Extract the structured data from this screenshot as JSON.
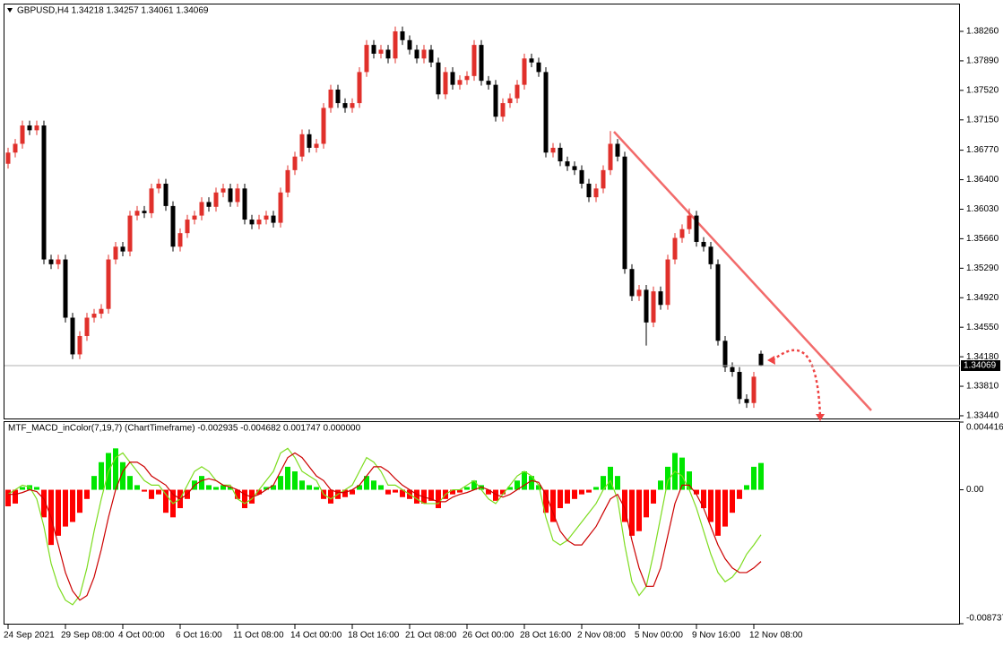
{
  "chart_data": [
    {
      "type": "candlestick",
      "title": "GBPUSD,H4 1.34218 1.34257 1.34061 1.34069",
      "up_color": "#e0302b",
      "down_color": "#000000",
      "xlim": [
        -0.5,
        132.5
      ],
      "xticks": [
        {
          "value": 0,
          "label": "24 Sep 2021"
        },
        {
          "value": 8,
          "label": "29 Sep 08:00"
        },
        {
          "value": 16,
          "label": "4 Oct 00:00"
        },
        {
          "value": 24,
          "label": "6 Oct 16:00"
        },
        {
          "value": 32,
          "label": "11 Oct 08:00"
        },
        {
          "value": 40,
          "label": "14 Oct 00:00"
        },
        {
          "value": 48,
          "label": "18 Oct 16:00"
        },
        {
          "value": 56,
          "label": "21 Oct 08:00"
        },
        {
          "value": 64,
          "label": "26 Oct 00:00"
        },
        {
          "value": 72,
          "label": "28 Oct 16:00"
        },
        {
          "value": 80,
          "label": "2 Nov 08:00"
        },
        {
          "value": 88,
          "label": "5 Nov 00:00"
        },
        {
          "value": 96,
          "label": "9 Nov 16:00"
        },
        {
          "value": 104,
          "label": "12 Nov 08:00"
        }
      ],
      "ylim": [
        1.33406,
        1.38597
      ],
      "yticks": [
        {
          "value": 1.3826,
          "label": "1.38260"
        },
        {
          "value": 1.3789,
          "label": "1.37890"
        },
        {
          "value": 1.3752,
          "label": "1.37520"
        },
        {
          "value": 1.3715,
          "label": "1.37150"
        },
        {
          "value": 1.3677,
          "label": "1.36770"
        },
        {
          "value": 1.364,
          "label": "1.36400"
        },
        {
          "value": 1.3603,
          "label": "1.36030"
        },
        {
          "value": 1.3566,
          "label": "1.35660"
        },
        {
          "value": 1.3529,
          "label": "1.35290"
        },
        {
          "value": 1.3492,
          "label": "1.34920"
        },
        {
          "value": 1.3455,
          "label": "1.34550"
        },
        {
          "value": 1.3418,
          "label": "1.34180"
        },
        {
          "value": 1.3381,
          "label": "1.33810"
        },
        {
          "value": 1.3344,
          "label": "1.33440"
        }
      ],
      "open": [
        1.366,
        1.3674,
        1.3685,
        1.3708,
        1.3702,
        1.3708,
        1.354,
        1.3534,
        1.354,
        1.3467,
        1.3421,
        1.3444,
        1.3467,
        1.3472,
        1.3478,
        1.354,
        1.3556,
        1.355,
        1.3595,
        1.3601,
        1.3598,
        1.3629,
        1.3635,
        1.3607,
        1.3556,
        1.3573,
        1.359,
        1.3595,
        1.3612,
        1.3606,
        1.3624,
        1.3629,
        1.3612,
        1.3629,
        1.359,
        1.3584,
        1.359,
        1.3595,
        1.3586,
        1.3624,
        1.3652,
        1.3669,
        1.3697,
        1.368,
        1.3685,
        1.373,
        1.3753,
        1.3736,
        1.373,
        1.3736,
        1.3775,
        1.3809,
        1.3798,
        1.3803,
        1.3792,
        1.3826,
        1.3815,
        1.3803,
        1.3792,
        1.3803,
        1.3787,
        1.3747,
        1.3775,
        1.3759,
        1.3765,
        1.377,
        1.3809,
        1.3764,
        1.3759,
        1.3719,
        1.3736,
        1.3742,
        1.3759,
        1.3792,
        1.3787,
        1.3775,
        1.3674,
        1.368,
        1.3663,
        1.3657,
        1.3652,
        1.3635,
        1.3618,
        1.3629,
        1.3652,
        1.3685,
        1.3669,
        1.3528,
        1.3494,
        1.3502,
        1.3461,
        1.35,
        1.3483,
        1.354,
        1.3567,
        1.3578,
        1.3595,
        1.3562,
        1.3556,
        1.3534,
        1.3438,
        1.3405,
        1.3399,
        1.3365,
        1.336,
        1.34218
      ],
      "high": [
        1.368,
        1.3691,
        1.3714,
        1.3714,
        1.3714,
        1.3714,
        1.3546,
        1.3546,
        1.3546,
        1.3473,
        1.345,
        1.3473,
        1.3478,
        1.3484,
        1.3546,
        1.3562,
        1.3562,
        1.3601,
        1.3607,
        1.3607,
        1.3635,
        1.3641,
        1.3641,
        1.3613,
        1.3579,
        1.3596,
        1.3601,
        1.3618,
        1.3618,
        1.363,
        1.3635,
        1.3635,
        1.3635,
        1.3635,
        1.3596,
        1.3596,
        1.3601,
        1.3601,
        1.363,
        1.3658,
        1.3675,
        1.3703,
        1.3703,
        1.3691,
        1.3736,
        1.3759,
        1.3759,
        1.3742,
        1.3742,
        1.3781,
        1.3815,
        1.3815,
        1.3809,
        1.3809,
        1.3832,
        1.3832,
        1.3821,
        1.3809,
        1.3809,
        1.3809,
        1.3793,
        1.3781,
        1.3781,
        1.3771,
        1.3776,
        1.3815,
        1.3815,
        1.377,
        1.3765,
        1.3742,
        1.3748,
        1.3765,
        1.3798,
        1.3798,
        1.3793,
        1.3781,
        1.3686,
        1.3686,
        1.3669,
        1.3663,
        1.3658,
        1.3641,
        1.3635,
        1.3658,
        1.3701,
        1.3691,
        1.3675,
        1.3534,
        1.3508,
        1.3508,
        1.3506,
        1.3506,
        1.3546,
        1.3573,
        1.3584,
        1.3604,
        1.3601,
        1.3568,
        1.3562,
        1.354,
        1.3444,
        1.3411,
        1.3405,
        1.3371,
        1.3399,
        1.34257
      ],
      "low": [
        1.3654,
        1.3668,
        1.3679,
        1.3696,
        1.3696,
        1.3534,
        1.3528,
        1.3528,
        1.3461,
        1.3415,
        1.3415,
        1.3438,
        1.3461,
        1.3466,
        1.3472,
        1.3534,
        1.3544,
        1.3544,
        1.3589,
        1.3592,
        1.3592,
        1.3623,
        1.3601,
        1.355,
        1.355,
        1.3567,
        1.3584,
        1.3589,
        1.36,
        1.36,
        1.3618,
        1.3606,
        1.3606,
        1.3584,
        1.3578,
        1.3578,
        1.3584,
        1.358,
        1.358,
        1.3618,
        1.3646,
        1.3663,
        1.3674,
        1.3674,
        1.3679,
        1.3724,
        1.373,
        1.3724,
        1.3724,
        1.373,
        1.3769,
        1.3792,
        1.3792,
        1.3786,
        1.3786,
        1.3809,
        1.3797,
        1.3786,
        1.3786,
        1.3781,
        1.3741,
        1.3741,
        1.3753,
        1.3753,
        1.3759,
        1.3764,
        1.3758,
        1.3753,
        1.3713,
        1.3713,
        1.373,
        1.3736,
        1.3753,
        1.3781,
        1.3769,
        1.3668,
        1.3668,
        1.3657,
        1.3651,
        1.3646,
        1.3629,
        1.3612,
        1.3612,
        1.3623,
        1.3646,
        1.3663,
        1.3522,
        1.3488,
        1.3488,
        1.3432,
        1.3455,
        1.3477,
        1.3477,
        1.3534,
        1.3561,
        1.3572,
        1.3556,
        1.355,
        1.3528,
        1.3432,
        1.3399,
        1.3393,
        1.3359,
        1.3354,
        1.3354,
        1.34061
      ],
      "close": [
        1.3674,
        1.3685,
        1.3708,
        1.3702,
        1.3708,
        1.354,
        1.3534,
        1.354,
        1.3467,
        1.3421,
        1.3444,
        1.3467,
        1.3472,
        1.3478,
        1.354,
        1.3556,
        1.355,
        1.3595,
        1.3601,
        1.3598,
        1.3629,
        1.3635,
        1.3607,
        1.3556,
        1.3573,
        1.359,
        1.3595,
        1.3612,
        1.3606,
        1.3624,
        1.3629,
        1.3612,
        1.3629,
        1.359,
        1.3584,
        1.359,
        1.3595,
        1.3586,
        1.3624,
        1.3652,
        1.3669,
        1.3697,
        1.368,
        1.3685,
        1.373,
        1.3753,
        1.3736,
        1.373,
        1.3736,
        1.3775,
        1.3809,
        1.3798,
        1.3803,
        1.3792,
        1.3826,
        1.3815,
        1.3803,
        1.3792,
        1.3803,
        1.3787,
        1.3747,
        1.3775,
        1.3759,
        1.3765,
        1.377,
        1.3809,
        1.3764,
        1.3759,
        1.3719,
        1.3736,
        1.3742,
        1.3759,
        1.3792,
        1.3787,
        1.3775,
        1.3674,
        1.368,
        1.3663,
        1.3657,
        1.3652,
        1.3635,
        1.3618,
        1.3629,
        1.3652,
        1.3685,
        1.3669,
        1.3528,
        1.3494,
        1.3502,
        1.3461,
        1.35,
        1.3483,
        1.354,
        1.3567,
        1.3578,
        1.3595,
        1.3562,
        1.3556,
        1.3534,
        1.3438,
        1.3405,
        1.3399,
        1.3365,
        1.336,
        1.3393,
        1.34069
      ]
    },
    {
      "type": "macd",
      "title": "MTF_MACD_inColor(7,19,7) (ChartTimeframe) -0.002935 -0.004682 0.001747 0.000000",
      "up_color": "#00e600",
      "down_color": "#ff0000",
      "ylim": [
        -0.008737,
        0.004416
      ],
      "yticks": [
        0.004416,
        {
          "value": 0,
          "label": "0.00"
        },
        -0.008737
      ],
      "values": [
        -0.00108,
        -0.0009,
        0.00018,
        0.0003,
        0.00018,
        -0.0018,
        -0.0036,
        -0.003,
        -0.0024,
        -0.0021,
        -0.0015,
        -0.0006,
        0.0009,
        0.0018,
        0.0024,
        0.0027,
        0.0018,
        0.0009,
        0.0003,
        -0.00012,
        -0.0006,
        -0.0003,
        -0.0015,
        -0.0018,
        -0.0012,
        -0.0006,
        0.0006,
        0.0009,
        0.0003,
        0.00018,
        0.0003,
        0.00018,
        -0.0006,
        -0.0012,
        -0.0009,
        -0.0003,
        0.00018,
        0.0003,
        0.0009,
        0.0015,
        0.0012,
        0.0006,
        0.0003,
        0.00018,
        -0.0006,
        -0.0009,
        -0.0006,
        -0.00048,
        -0.0003,
        0.0003,
        0.0009,
        0.0006,
        0.0003,
        -0.0003,
        -0.00018,
        -0.00048,
        -0.0006,
        -0.0009,
        -0.0009,
        -0.00072,
        -0.0012,
        -0.0006,
        -0.0003,
        -0.00018,
        0.00018,
        0.0006,
        0.0003,
        -0.0003,
        -0.00072,
        -0.0003,
        0.00018,
        0.0006,
        0.0012,
        0.0009,
        0.0003,
        -0.0015,
        -0.0021,
        -0.0012,
        -0.0009,
        -0.0006,
        -0.0003,
        -0.00018,
        0.00018,
        0.0009,
        0.0015,
        0.0009,
        -0.0021,
        -0.003,
        -0.0027,
        -0.0018,
        -0.0009,
        0.0006,
        0.0015,
        0.0024,
        0.0021,
        0.0012,
        -0.0003,
        -0.0012,
        -0.0021,
        -0.003,
        -0.0024,
        -0.0015,
        -0.0006,
        0.0003,
        0.0015,
        0.001747
      ],
      "lines": [
        {
          "color": "#7ddc1f",
          "values": [
            -0.0003,
            0,
            0.0003,
            0.00018,
            -0.0006,
            -0.0024,
            -0.0048,
            -0.0063,
            -0.0072,
            -0.0075,
            -0.0069,
            -0.0051,
            -0.0027,
            -0.0006,
            0.0012,
            0.0021,
            0.0024,
            0.0018,
            0.0012,
            0.0006,
            0.0003,
            0.0003,
            -0.0003,
            -0.0009,
            -0.0006,
            0.0003,
            0.0012,
            0.0015,
            0.0012,
            0.0006,
            0.0003,
            0.0003,
            -0.0006,
            -0.0009,
            -0.0006,
            0,
            0.0006,
            0.0012,
            0.0024,
            0.0027,
            0.0021,
            0.0012,
            0.0009,
            0.0006,
            -0.0003,
            -0.0006,
            -0.0003,
            0,
            0.0003,
            0.0012,
            0.0021,
            0.0018,
            0.0012,
            0.0003,
            0.0003,
            0,
            -0.0003,
            -0.0006,
            -0.0009,
            -0.0009,
            -0.0009,
            -0.0003,
            0,
            0,
            0.0003,
            0.0006,
            0,
            -0.0006,
            -0.0009,
            -0.0003,
            0.0003,
            0.0009,
            0.0012,
            0.0009,
            0.0003,
            -0.0018,
            -0.0033,
            -0.0036,
            -0.0033,
            -0.0027,
            -0.0021,
            -0.0015,
            -0.0009,
            0,
            0.0006,
            -0.0006,
            -0.0036,
            -0.006,
            -0.0069,
            -0.0063,
            -0.0042,
            -0.0018,
            0.0006,
            0.0012,
            0.0009,
            0,
            -0.0012,
            -0.0027,
            -0.0042,
            -0.0054,
            -0.006,
            -0.0057,
            -0.0051,
            -0.0042,
            -0.0036,
            -0.002935
          ]
        },
        {
          "color": "#cc0000",
          "values": [
            -0.0003,
            -0.0003,
            -0.00018,
            0,
            -0.00012,
            -0.0006,
            -0.0018,
            -0.0036,
            -0.0054,
            -0.0066,
            -0.0072,
            -0.0069,
            -0.0057,
            -0.0039,
            -0.0018,
            0,
            0.0012,
            0.0018,
            0.0018,
            0.0015,
            0.0009,
            0.0006,
            0.0003,
            -0.0003,
            -0.0006,
            -0.0003,
            0.0003,
            0.0006,
            0.00072,
            0.0006,
            0.0003,
            0.00018,
            0,
            -0.0003,
            -0.00048,
            -0.0003,
            0,
            0.0003,
            0.0012,
            0.0021,
            0.0024,
            0.0021,
            0.0015,
            0.0009,
            0.0006,
            0,
            -0.00018,
            -0.00018,
            0,
            0.0003,
            0.0009,
            0.0015,
            0.0015,
            0.0012,
            0.00072,
            0.0003,
            0,
            -0.0003,
            -0.00048,
            -0.0006,
            -0.00078,
            -0.00078,
            -0.00048,
            -0.0003,
            -0.00018,
            0,
            0.00018,
            0,
            -0.0003,
            -0.00048,
            -0.0003,
            0,
            0.0003,
            0.0006,
            0.00048,
            -0.0003,
            -0.0015,
            -0.0027,
            -0.0033,
            -0.0036,
            -0.0036,
            -0.003,
            -0.0024,
            -0.0015,
            -0.0006,
            -0.0003,
            -0.0012,
            -0.0033,
            -0.0051,
            -0.0063,
            -0.0063,
            -0.0051,
            -0.003,
            -0.0009,
            0.0003,
            0.0003,
            -0.0003,
            -0.0012,
            -0.0024,
            -0.0036,
            -0.0045,
            -0.0051,
            -0.0054,
            -0.0054,
            -0.0051,
            -0.004682
          ]
        }
      ]
    }
  ]
}
